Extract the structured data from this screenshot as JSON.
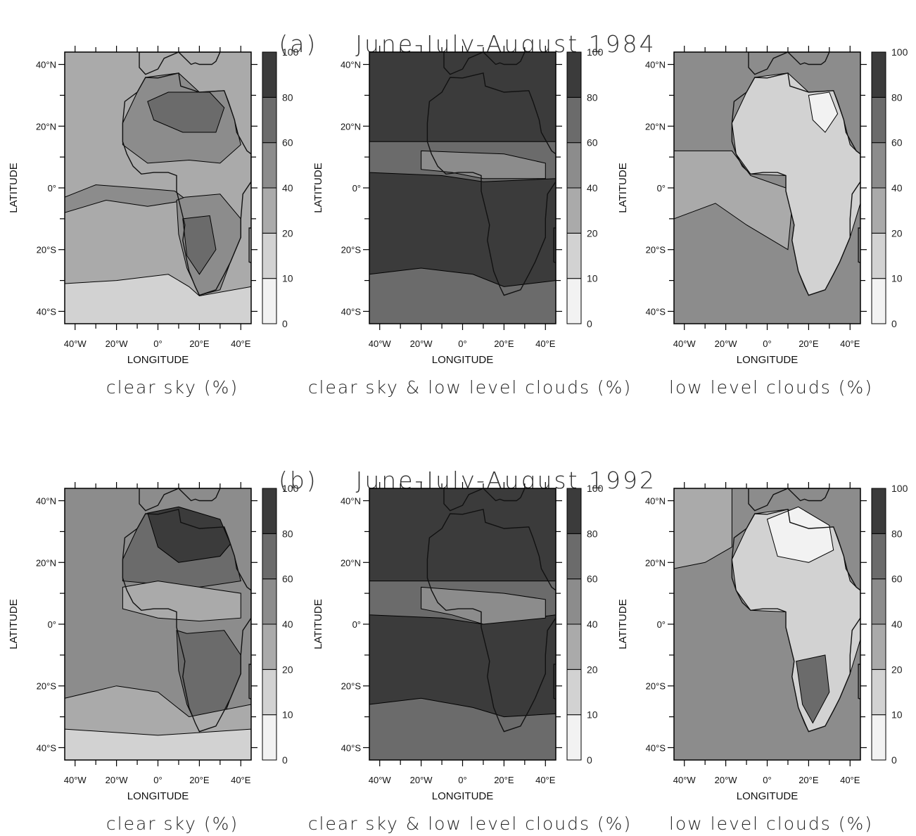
{
  "sections": [
    {
      "label": "(a)",
      "title": "June-July-August 1984"
    },
    {
      "label": "(b)",
      "title": "June-July-August 1992"
    }
  ],
  "chart_data": [
    {
      "type": "heatmap",
      "section": "(a)",
      "caption": "clear sky (%)",
      "xlabel": "LONGITUDE",
      "ylabel": "LATITUDE",
      "xticks": [
        "40°W",
        "20°W",
        "0°",
        "20°E",
        "40°E"
      ],
      "yticks": [
        "40°N",
        "20°N",
        "0°",
        "20°S",
        "40°S"
      ],
      "xlim": [
        -45,
        45
      ],
      "ylim": [
        -44,
        44
      ],
      "colorbar_levels": [
        0,
        10,
        20,
        40,
        60,
        80,
        100
      ],
      "colorbar_colors": [
        "#f2f2f2",
        "#d2d2d2",
        "#aaaaaa",
        "#8c8c8c",
        "#6b6b6b",
        "#3b3b3b"
      ],
      "background_level": "20-40",
      "regions": [
        {
          "level": "40-60",
          "approx_extent": "Sahara, 8°N-38°N"
        },
        {
          "level": "60-80",
          "approx_extent": "eastern Sahara core 18°N-30°N"
        },
        {
          "level": "40-60",
          "approx_extent": "equatorial Atlantic band 0°-5°S"
        },
        {
          "level": "40-60",
          "approx_extent": "southern Africa 5°S-35°S"
        },
        {
          "level": "60-80",
          "approx_extent": "southern Africa interior 10°S-28°S"
        },
        {
          "level": "10-20",
          "approx_extent": "south Atlantic south of 30°S"
        }
      ]
    },
    {
      "type": "heatmap",
      "section": "(a)",
      "caption": "clear sky & low level clouds (%)",
      "xlabel": "LONGITUDE",
      "ylabel": "LATITUDE",
      "xticks": [
        "40°W",
        "20°W",
        "0°",
        "20°E",
        "40°E"
      ],
      "yticks": [
        "40°N",
        "20°N",
        "0°",
        "20°S",
        "40°S"
      ],
      "xlim": [
        -45,
        45
      ],
      "ylim": [
        -44,
        44
      ],
      "colorbar_levels": [
        0,
        10,
        20,
        40,
        60,
        80,
        100
      ],
      "colorbar_colors": [
        "#f2f2f2",
        "#d2d2d2",
        "#aaaaaa",
        "#8c8c8c",
        "#6b6b6b",
        "#3b3b3b"
      ],
      "background_level": "80-100",
      "regions": [
        {
          "level": "60-80",
          "approx_extent": "band 5°N-15°N"
        },
        {
          "level": "40-60",
          "approx_extent": "Sahel/Gulf of Guinea 3°N-12°N"
        },
        {
          "level": "60-80",
          "approx_extent": "south Atlantic south of 30°S"
        }
      ]
    },
    {
      "type": "heatmap",
      "section": "(a)",
      "caption": "low level clouds (%)",
      "xlabel": "LONGITUDE",
      "ylabel": "LATITUDE",
      "xticks": [
        "40°W",
        "20°W",
        "0°",
        "20°E",
        "40°E"
      ],
      "yticks": [
        "40°N",
        "20°N",
        "0°",
        "20°S",
        "40°S"
      ],
      "xlim": [
        -45,
        45
      ],
      "ylim": [
        -44,
        44
      ],
      "colorbar_levels": [
        0,
        10,
        20,
        40,
        60,
        80,
        100
      ],
      "colorbar_colors": [
        "#f2f2f2",
        "#d2d2d2",
        "#aaaaaa",
        "#8c8c8c",
        "#6b6b6b",
        "#3b3b3b"
      ],
      "background_level": "40-60",
      "regions": [
        {
          "level": "20-40",
          "approx_extent": "tropical Atlantic 12°N-15°S"
        },
        {
          "level": "10-20",
          "approx_extent": "African continent"
        },
        {
          "level": "0-10",
          "approx_extent": "Sahara core and southern Africa"
        }
      ]
    },
    {
      "type": "heatmap",
      "section": "(b)",
      "caption": "clear sky (%)",
      "xlabel": "LONGITUDE",
      "ylabel": "LATITUDE",
      "xticks": [
        "40°W",
        "20°W",
        "0°",
        "20°E",
        "40°E"
      ],
      "yticks": [
        "40°N",
        "20°N",
        "0°",
        "20°S",
        "40°S"
      ],
      "xlim": [
        -45,
        45
      ],
      "ylim": [
        -44,
        44
      ],
      "colorbar_levels": [
        0,
        10,
        20,
        40,
        60,
        80,
        100
      ],
      "colorbar_colors": [
        "#f2f2f2",
        "#d2d2d2",
        "#aaaaaa",
        "#8c8c8c",
        "#6b6b6b",
        "#3b3b3b"
      ],
      "background_level": "40-60",
      "regions": [
        {
          "level": "60-80",
          "approx_extent": "Sahara 12°N-40°N"
        },
        {
          "level": "80-100",
          "approx_extent": "Sahara core 22°N-36°N"
        },
        {
          "level": "20-40",
          "approx_extent": "Sahel 0°-12°N"
        },
        {
          "level": "60-80",
          "approx_extent": "southern Africa 3°S-35°S"
        },
        {
          "level": "20-40",
          "approx_extent": "south Atlantic south of 25°S"
        },
        {
          "level": "10-20",
          "approx_extent": "far south Atlantic south of 35°S"
        }
      ]
    },
    {
      "type": "heatmap",
      "section": "(b)",
      "caption": "clear sky & low level clouds (%)",
      "xlabel": "LONGITUDE",
      "ylabel": "LATITUDE",
      "xticks": [
        "40°W",
        "20°W",
        "0°",
        "20°E",
        "40°E"
      ],
      "yticks": [
        "40°N",
        "20°N",
        "0°",
        "20°S",
        "40°S"
      ],
      "xlim": [
        -45,
        45
      ],
      "ylim": [
        -44,
        44
      ],
      "colorbar_levels": [
        0,
        10,
        20,
        40,
        60,
        80,
        100
      ],
      "colorbar_colors": [
        "#f2f2f2",
        "#d2d2d2",
        "#aaaaaa",
        "#8c8c8c",
        "#6b6b6b",
        "#3b3b3b"
      ],
      "background_level": "80-100",
      "regions": [
        {
          "level": "60-80",
          "approx_extent": "band 3°N-15°N"
        },
        {
          "level": "40-60",
          "approx_extent": "Sahel/Gulf of Guinea 0°-10°N"
        },
        {
          "level": "60-80",
          "approx_extent": "south Atlantic south of 28°S"
        }
      ]
    },
    {
      "type": "heatmap",
      "section": "(b)",
      "caption": "low level clouds (%)",
      "xlabel": "LONGITUDE",
      "ylabel": "LATITUDE",
      "xticks": [
        "40°W",
        "20°W",
        "0°",
        "20°E",
        "40°E"
      ],
      "yticks": [
        "40°N",
        "20°N",
        "0°",
        "20°S",
        "40°S"
      ],
      "xlim": [
        -45,
        45
      ],
      "ylim": [
        -44,
        44
      ],
      "colorbar_levels": [
        0,
        10,
        20,
        40,
        60,
        80,
        100
      ],
      "colorbar_colors": [
        "#f2f2f2",
        "#d2d2d2",
        "#aaaaaa",
        "#8c8c8c",
        "#6b6b6b",
        "#3b3b3b"
      ],
      "background_level": "40-60",
      "regions": [
        {
          "level": "20-40",
          "approx_extent": "North Atlantic west of 20°W"
        },
        {
          "level": "10-20",
          "approx_extent": "African continent"
        },
        {
          "level": "0-10",
          "approx_extent": "Sahara core and southern Africa"
        },
        {
          "level": "60-80",
          "approx_extent": "southeast Atlantic 8°S-20°S"
        }
      ]
    }
  ]
}
